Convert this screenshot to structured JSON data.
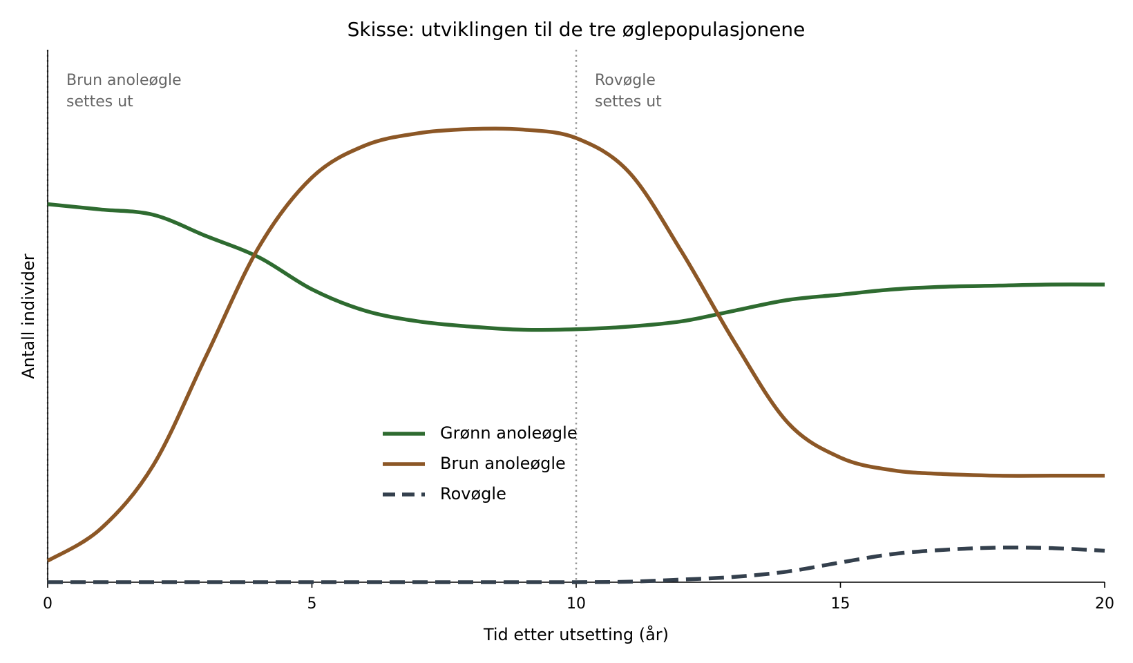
{
  "chart_data": {
    "type": "line",
    "title": "Skisse: utviklingen til de tre øglepopulasjonene",
    "x_label": "Tid etter utsetting (år)",
    "y_label": "Antall individer",
    "x": [
      0,
      1,
      2,
      3,
      4,
      5,
      6,
      7,
      8,
      9,
      10,
      11,
      12,
      13,
      14,
      15,
      16,
      17,
      18,
      19,
      20
    ],
    "xlim": [
      0,
      20
    ],
    "xticks": [
      0,
      5,
      10,
      15,
      20
    ],
    "ylim": [
      0,
      100
    ],
    "legend": "center",
    "series": [
      {
        "name": "Grønn anoleøgle",
        "color": "#2e6b30",
        "line_style": "solid",
        "values": [
          71,
          70,
          69,
          65,
          61,
          55,
          51,
          49,
          48,
          47.4,
          47.5,
          48,
          49,
          51,
          53,
          54,
          55,
          55.5,
          55.7,
          55.9,
          55.9
        ]
      },
      {
        "name": "Brun anoleøgle",
        "color": "#8c5726",
        "line_style": "solid",
        "values": [
          4,
          10,
          22,
          42.5,
          63,
          76,
          82,
          84.3,
          85.1,
          85,
          83.4,
          77,
          62,
          45,
          30,
          23.4,
          21,
          20.3,
          20,
          20,
          20
        ]
      },
      {
        "name": "Rovøgle",
        "color": "#34404d",
        "line_style": "dashed",
        "values": [
          0,
          0,
          0,
          0,
          0,
          0,
          0,
          0,
          0,
          0,
          0,
          0.1,
          0.5,
          1,
          2,
          3.7,
          5.3,
          6.1,
          6.5,
          6.4,
          5.9
        ]
      }
    ],
    "annotations": [
      {
        "x": 0,
        "text": [
          "Brun anoleøgle",
          "settes ut"
        ]
      },
      {
        "x": 10,
        "text": [
          "Rovøgle",
          "settes ut"
        ]
      }
    ]
  }
}
